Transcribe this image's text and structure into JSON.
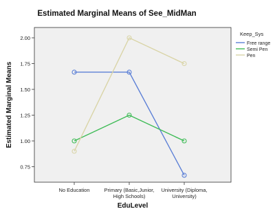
{
  "chart_data": {
    "type": "line",
    "title": "Estimated Marginal Means of See_MidMan",
    "xlabel": "EduLevel",
    "ylabel": "Estimated Marginal Means",
    "categories": [
      [
        "No Education"
      ],
      [
        "Primary (Basic,Junior,",
        "High Schools)"
      ],
      [
        "University (Diploma,",
        "University)"
      ]
    ],
    "ylim": [
      0.6,
      2.1
    ],
    "yticks": [
      "0.75",
      "1.00",
      "1.25",
      "1.50",
      "1.75",
      "2.00"
    ],
    "legend_title": "Keep_Sys",
    "legend_position": "right",
    "grid": false,
    "series": [
      {
        "name": "Free range",
        "color": "#5b7fd6",
        "values": [
          1.667,
          1.667,
          0.667
        ]
      },
      {
        "name": "Semi Pen",
        "color": "#3dbb55",
        "values": [
          1.0,
          1.25,
          1.0
        ]
      },
      {
        "name": "Pen",
        "color": "#d9d4a6",
        "values": [
          0.9,
          2.0,
          1.75
        ]
      }
    ]
  }
}
